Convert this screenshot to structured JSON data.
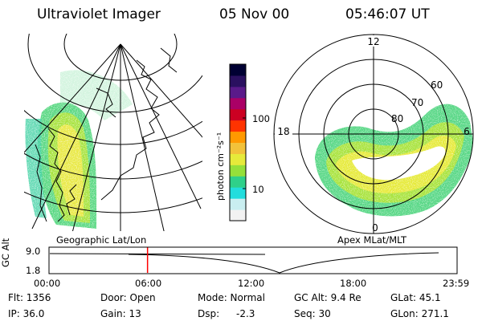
{
  "header": {
    "instrument": "Ultraviolet Imager",
    "date": "05 Nov 00",
    "time": "05:46:07 UT"
  },
  "left_panel": {
    "caption": "Geographic Lat/Lon"
  },
  "right_panel": {
    "caption": "Apex MLat/MLT",
    "mlt_labels": [
      "12",
      "18",
      "6",
      "0"
    ],
    "lat_labels": [
      "60",
      "70",
      "80"
    ]
  },
  "colorbar": {
    "label": "photon cm⁻²s⁻¹",
    "ticks": [
      "100",
      "10"
    ],
    "colors": [
      "#f2f2f2",
      "#c9eef0",
      "#22dddd",
      "#2fd08a",
      "#95e03a",
      "#e6ea3a",
      "#f2c23a",
      "#ff9900",
      "#ff3300",
      "#cc0022",
      "#aa0066",
      "#5a1a8a",
      "#2a1060",
      "#000033"
    ]
  },
  "timeline": {
    "y_axis_label": "GC Alt",
    "y_ticks": [
      "9.0",
      "1.8"
    ],
    "x_ticks": [
      "00:00",
      "06:00",
      "12:00",
      "18:00",
      "23:59"
    ],
    "current_time_hours": 5.77,
    "marker_color": "#ff0000"
  },
  "info": {
    "flt": "Flt: 1356",
    "ip": "IP: 36.0",
    "door": "Door: Open",
    "gain": "Gain: 13",
    "mode": "Mode: Normal",
    "dsp_label": "Dsp:",
    "dsp_value": "-2.3",
    "gc_alt": "GC Alt: 9.4 Re",
    "seq": "Seq: 30",
    "glat": "GLat: 45.1",
    "glon": "GLon: 271.1"
  }
}
